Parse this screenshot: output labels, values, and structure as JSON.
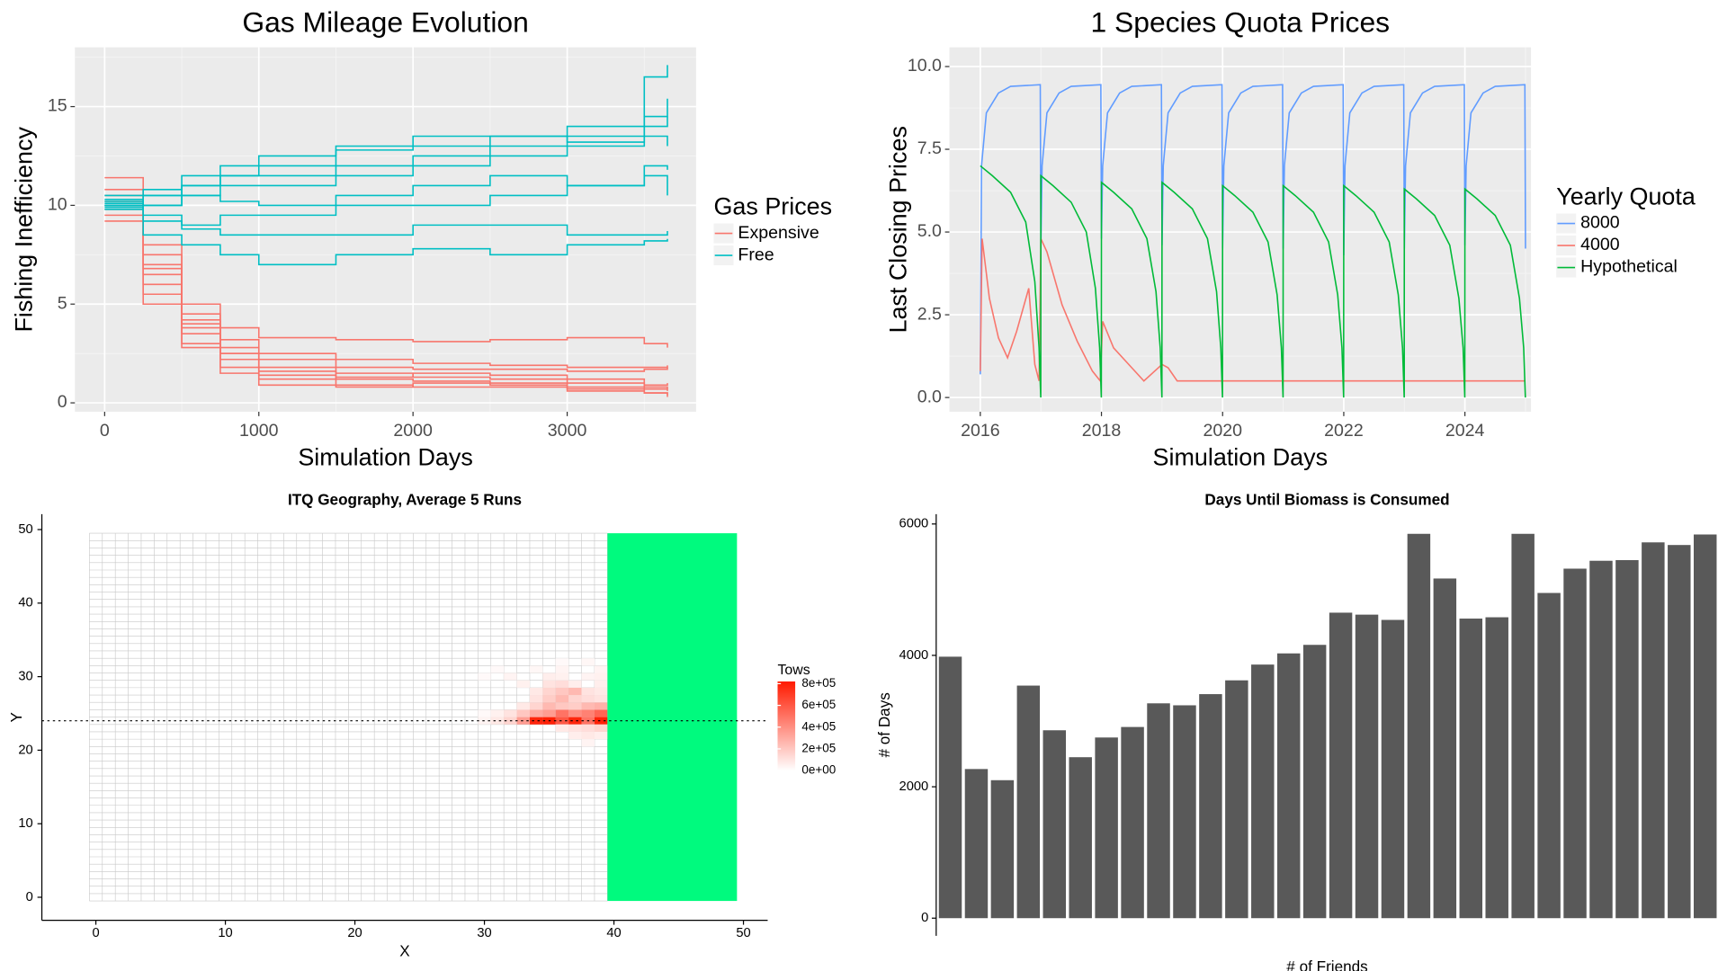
{
  "chart_data": [
    {
      "type": "line",
      "title": "Gas Mileage Evolution",
      "xlabel": "Simulation Days",
      "ylabel": "Fishing Inefficiency",
      "legend_title": "Gas Prices",
      "step": true,
      "grid": true,
      "xlim": [
        -193,
        3836
      ],
      "ylim": [
        -0.45,
        18.0
      ],
      "xticks": [
        0,
        1000,
        2000,
        3000
      ],
      "yticks": [
        0,
        5,
        10,
        15
      ],
      "x": [
        0,
        250,
        500,
        750,
        1000,
        1500,
        2000,
        2500,
        3000,
        3500,
        3650
      ],
      "series": [
        {
          "name": "Expensive",
          "color": "#f8766d",
          "runs": [
            [
              11.4,
              8,
              5,
              3.8,
              3.3,
              3.2,
              3.1,
              3.2,
              3.3,
              3.0,
              2.8
            ],
            [
              10.5,
              7,
              4.5,
              3.2,
              2.5,
              2.2,
              2.0,
              1.9,
              1.8,
              1.8,
              1.9
            ],
            [
              10.2,
              6.5,
              4,
              2.8,
              2.2,
              1.8,
              1.7,
              1.7,
              1.6,
              1.7,
              1.8
            ],
            [
              9.8,
              6,
              3.5,
              2.5,
              1.8,
              1.5,
              1.3,
              1.2,
              1.0,
              0.9,
              1.0
            ],
            [
              10,
              6.8,
              3.8,
              2.2,
              1.4,
              1.2,
              1.1,
              1.0,
              0.8,
              0.7,
              0.6
            ],
            [
              9.5,
              5.5,
              3,
              1.8,
              1.2,
              0.9,
              0.8,
              0.8,
              0.6,
              0.5,
              0.4
            ],
            [
              10.8,
              7.5,
              4.2,
              2.5,
              1.6,
              1.3,
              1.5,
              1.4,
              1.2,
              0.8,
              0.7
            ],
            [
              9.2,
              5,
              2.8,
              1.5,
              0.9,
              0.8,
              1.0,
              0.9,
              0.7,
              0.5,
              0.3
            ]
          ]
        },
        {
          "name": "Free",
          "color": "#00bfc4",
          "runs": [
            [
              10.5,
              10.5,
              11,
              11.5,
              12,
              13,
              13.5,
              13.5,
              14,
              16.5,
              17.1
            ],
            [
              10.2,
              10.8,
              11.5,
              12,
              12.5,
              12.8,
              13,
              13.5,
              13.2,
              14.5,
              15.4
            ],
            [
              10,
              10.5,
              11,
              11.5,
              11.5,
              12,
              12.5,
              13,
              13.5,
              14,
              14.5
            ],
            [
              10.3,
              10,
              10.5,
              11,
              11,
              11.5,
              12,
              12.5,
              13,
              13.5,
              13
            ],
            [
              9.8,
              10,
              10.5,
              10.2,
              10,
              10.5,
              11,
              11.5,
              11,
              12,
              11.8
            ],
            [
              10.1,
              9.5,
              9,
              9.5,
              9.5,
              10,
              10,
              10.5,
              11,
              11.5,
              10.5
            ],
            [
              9.9,
              9.2,
              8.8,
              8.5,
              8.5,
              8.5,
              9,
              9,
              8.5,
              8.5,
              8.7
            ],
            [
              10,
              8.5,
              8,
              7.5,
              7,
              7.5,
              7.8,
              7.5,
              8,
              8.2,
              8.3
            ]
          ]
        }
      ]
    },
    {
      "type": "line",
      "title": "1 Species Quota Prices",
      "xlabel": "Simulation Days",
      "ylabel": "Last Closing Prices",
      "legend_title": "Yearly Quota",
      "step": false,
      "grid": true,
      "xlim": [
        2015.49,
        2025.09
      ],
      "ylim": [
        -0.43,
        10.58
      ],
      "xticks": [
        2016,
        2018,
        2020,
        2022,
        2024
      ],
      "yticks": [
        {
          "value": 0,
          "label": "0.0"
        },
        2.5,
        {
          "value": 5,
          "label": "5.0"
        },
        7.5,
        {
          "value": 10,
          "label": "10.0"
        }
      ],
      "series": [
        {
          "name": "8000",
          "color": "#619cff",
          "x": [
            2016,
            2016.02,
            2016.1,
            2016.3,
            2016.5,
            2016.99,
            2017,
            2017.02,
            2017.1,
            2017.3,
            2017.5,
            2017.99,
            2018,
            2018.02,
            2018.1,
            2018.3,
            2018.5,
            2018.99,
            2019,
            2019.02,
            2019.1,
            2019.3,
            2019.5,
            2019.99,
            2020,
            2020.02,
            2020.1,
            2020.3,
            2020.5,
            2020.99,
            2021,
            2021.02,
            2021.1,
            2021.3,
            2021.5,
            2021.99,
            2022,
            2022.02,
            2022.1,
            2022.3,
            2022.5,
            2022.99,
            2023,
            2023.02,
            2023.1,
            2023.3,
            2023.5,
            2023.99,
            2024,
            2024.02,
            2024.1,
            2024.3,
            2024.5,
            2024.99,
            2025
          ],
          "values": [
            0.7,
            7.0,
            8.6,
            9.2,
            9.4,
            9.45,
            4.5,
            7.0,
            8.6,
            9.2,
            9.4,
            9.45,
            4.8,
            7.0,
            8.6,
            9.2,
            9.4,
            9.45,
            4.6,
            7.0,
            8.6,
            9.2,
            9.4,
            9.45,
            4.5,
            7.0,
            8.6,
            9.2,
            9.4,
            9.45,
            4.5,
            7.0,
            8.6,
            9.2,
            9.4,
            9.45,
            4.3,
            7.0,
            8.6,
            9.2,
            9.4,
            9.45,
            4.5,
            7.0,
            8.6,
            9.2,
            9.4,
            9.45,
            4.6,
            7.0,
            8.6,
            9.2,
            9.4,
            9.45,
            4.5
          ]
        },
        {
          "name": "4000",
          "color": "#f8766d",
          "x": [
            2016,
            2016.03,
            2016.15,
            2016.3,
            2016.45,
            2016.6,
            2016.8,
            2016.9,
            2016.97,
            2017.0,
            2017.1,
            2017.35,
            2017.6,
            2017.85,
            2017.98,
            2018.02,
            2018.2,
            2018.5,
            2018.7,
            2019.0,
            2019.1,
            2019.25,
            2025
          ],
          "values": [
            0.8,
            4.8,
            3,
            1.8,
            1.2,
            2,
            3.3,
            1,
            0.5,
            4.8,
            4.4,
            2.8,
            1.7,
            0.8,
            0.5,
            2.3,
            1.5,
            0.9,
            0.5,
            1.0,
            0.9,
            0.5,
            0.5
          ]
        },
        {
          "name": "Hypothetical",
          "color": "#00ba38",
          "x": [
            2016,
            2016.2,
            2016.5,
            2016.75,
            2016.9,
            2016.97,
            2016.998,
            2017,
            2017.2,
            2017.5,
            2017.75,
            2017.9,
            2017.97,
            2017.998,
            2018,
            2018.2,
            2018.5,
            2018.75,
            2018.9,
            2018.97,
            2018.998,
            2019,
            2019.2,
            2019.5,
            2019.75,
            2019.9,
            2019.97,
            2019.998,
            2020,
            2020.2,
            2020.5,
            2020.75,
            2020.9,
            2020.97,
            2020.998,
            2021,
            2021.2,
            2021.5,
            2021.75,
            2021.9,
            2021.97,
            2021.998,
            2022,
            2022.2,
            2022.5,
            2022.75,
            2022.9,
            2022.97,
            2022.998,
            2023,
            2023.2,
            2023.5,
            2023.75,
            2023.9,
            2023.97,
            2023.998,
            2024,
            2024.2,
            2024.5,
            2024.75,
            2024.9,
            2024.97,
            2024.998
          ],
          "values": [
            7.0,
            6.7,
            6.2,
            5.3,
            3.5,
            1.5,
            0,
            6.7,
            6.4,
            5.9,
            5.0,
            3.3,
            1.5,
            0,
            6.5,
            6.2,
            5.7,
            4.8,
            3.2,
            1.5,
            0,
            6.5,
            6.2,
            5.7,
            4.8,
            3.2,
            1.5,
            0,
            6.4,
            6.1,
            5.6,
            4.7,
            3.1,
            1.5,
            0,
            6.4,
            6.1,
            5.6,
            4.7,
            3.1,
            1.5,
            0,
            6.4,
            6.1,
            5.6,
            4.7,
            3.1,
            1.5,
            0,
            6.3,
            6.0,
            5.5,
            4.6,
            3.0,
            1.5,
            0,
            6.3,
            6.0,
            5.5,
            4.6,
            3.0,
            1.5,
            0
          ]
        }
      ]
    },
    {
      "type": "heatmap",
      "title": "ITQ Geography, Average 5 Runs",
      "xlabel": "X",
      "ylabel": "Y",
      "legend_title": "Tows",
      "xlim": [
        -4.17,
        51.87
      ],
      "ylim": [
        -3.14,
        52.1
      ],
      "xticks": [
        0,
        10,
        20,
        30,
        40,
        50
      ],
      "yticks": [
        0,
        10,
        20,
        30,
        40,
        50
      ],
      "hline": 24,
      "colors": [
        "#ffffff",
        "#ff1a00"
      ],
      "clim": [
        0,
        820000
      ],
      "cticks": [
        {
          "value": 0,
          "label": "0e+00"
        },
        {
          "value": 200000,
          "label": "2e+05"
        },
        {
          "value": 400000,
          "label": "4e+05"
        },
        {
          "value": 600000,
          "label": "6e+05"
        },
        {
          "value": 800000,
          "label": "8e+05"
        }
      ],
      "region": {
        "x": [
          39.5,
          49.5
        ],
        "y": [
          -0.5,
          49.5
        ],
        "color": "#00fa7e"
      },
      "cells": {
        "x": [
          30,
          31,
          32,
          33,
          34,
          35,
          36,
          37,
          38,
          39,
          30,
          31,
          32,
          33,
          34,
          35,
          36,
          37,
          38,
          39,
          33,
          34,
          35,
          36,
          37,
          38,
          39,
          34,
          35,
          36,
          37,
          38,
          39,
          34,
          35,
          36,
          37,
          38,
          39,
          33,
          35,
          36,
          37,
          39,
          30,
          32,
          35,
          36,
          38,
          39,
          31,
          34,
          36,
          39,
          36,
          38,
          36,
          37,
          38,
          39,
          37,
          38,
          39,
          38
        ],
        "y": [
          24,
          24,
          24,
          24,
          24,
          24,
          24,
          24,
          24,
          24,
          25,
          25,
          25,
          25,
          25,
          25,
          25,
          25,
          25,
          25,
          26,
          26,
          26,
          26,
          26,
          26,
          26,
          27,
          27,
          27,
          27,
          27,
          27,
          28,
          28,
          28,
          28,
          28,
          28,
          29,
          29,
          29,
          29,
          29,
          30,
          30,
          30,
          30,
          30,
          30,
          31,
          31,
          31,
          31,
          32,
          32,
          23,
          23,
          23,
          23,
          22,
          22,
          22,
          21
        ],
        "values": [
          40000,
          80000,
          150000,
          350000,
          780000,
          800000,
          600000,
          780000,
          500000,
          800000,
          20000,
          50000,
          100000,
          200000,
          300000,
          350000,
          500000,
          400000,
          450000,
          550000,
          80000,
          150000,
          250000,
          200000,
          180000,
          250000,
          280000,
          100000,
          180000,
          250000,
          150000,
          120000,
          100000,
          80000,
          150000,
          200000,
          250000,
          100000,
          80000,
          50000,
          100000,
          120000,
          60000,
          60000,
          20000,
          40000,
          60000,
          50000,
          40000,
          50000,
          20000,
          30000,
          40000,
          40000,
          20000,
          30000,
          80000,
          100000,
          120000,
          150000,
          60000,
          80000,
          60000,
          40000
        ]
      }
    },
    {
      "type": "bar",
      "title": "Days Until Biomass is Consumed",
      "xlabel": "# of Friends",
      "ylabel": "# of Days",
      "color": "#595959",
      "ylim": [
        -268,
        6150
      ],
      "yticks": [
        0,
        2000,
        4000,
        6000
      ],
      "categories": [
        null,
        null,
        null,
        null,
        null,
        null,
        null,
        null,
        null,
        null,
        null,
        null,
        null,
        null,
        null,
        null,
        null,
        null,
        null,
        null,
        null,
        null,
        null,
        null,
        null,
        null,
        null,
        null,
        null,
        null
      ],
      "values": [
        3980,
        2270,
        2100,
        3540,
        2860,
        2450,
        2750,
        2910,
        3270,
        3240,
        3410,
        3620,
        3860,
        4030,
        4160,
        4650,
        4620,
        4540,
        5850,
        5170,
        4560,
        4580,
        5850,
        4950,
        5320,
        5440,
        5450,
        5720,
        5680,
        5840
      ]
    }
  ]
}
